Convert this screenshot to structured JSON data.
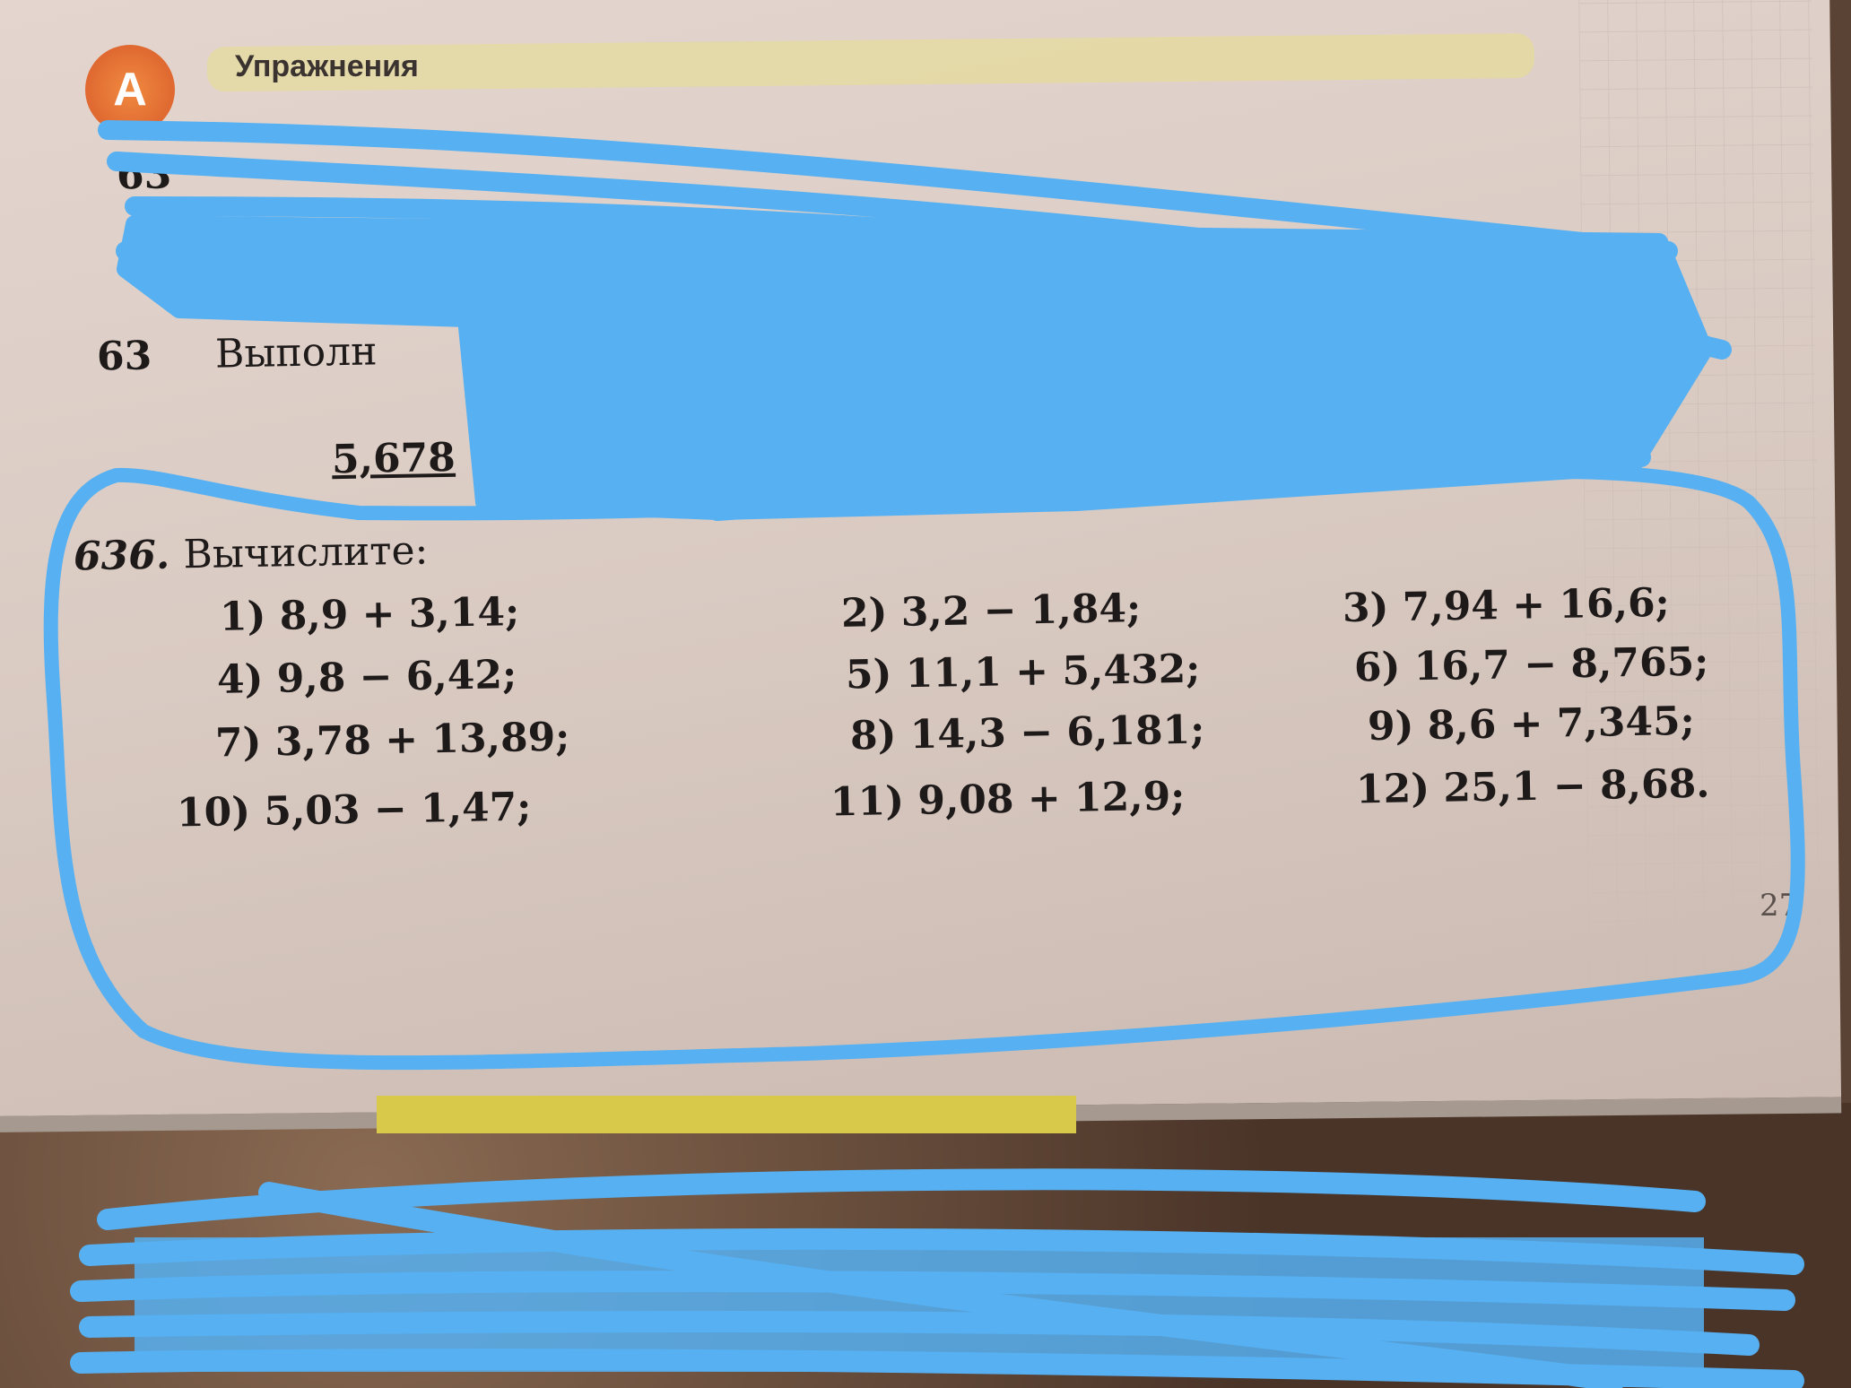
{
  "section": {
    "badge": "A",
    "title": "Упражнения"
  },
  "exercise": {
    "number": "636.",
    "instruction": "Вычислите:",
    "items": [
      "1) 8,9 + 3,14;",
      "2) 3,2 − 1,84;",
      "3) 7,94 + 16,6;",
      "4) 9,8 − 6,42;",
      "5) 11,1 + 5,432;",
      "6) 16,7 − 8,765;",
      "7) 3,78 + 13,89;",
      "8) 14,3 − 6,181;",
      "9) 8,6 + 7,345;",
      "10) 5,03 − 1,47;",
      "11) 9,08 + 12,9;",
      "12) 25,1 − 8,68."
    ]
  },
  "partial_visible": {
    "ex634": "63",
    "ex635": "63",
    "ex635_word": "Выполн",
    "value": "5,678"
  },
  "page_number": "27",
  "colors": {
    "scribble": "#56b0f2",
    "page": "#dccdc5",
    "badge": "#e8723a"
  }
}
